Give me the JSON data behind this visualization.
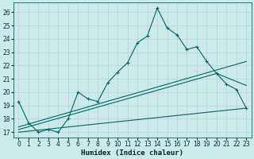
{
  "xlabel": "Humidex (Indice chaleur)",
  "bg_color": "#cdeaea",
  "grid_color": "#b8d8d8",
  "line_color": "#006666",
  "xlim": [
    -0.5,
    23.5
  ],
  "ylim": [
    16.6,
    26.7
  ],
  "xticks": [
    0,
    1,
    2,
    3,
    4,
    5,
    6,
    7,
    8,
    9,
    10,
    11,
    12,
    13,
    14,
    15,
    16,
    17,
    18,
    19,
    20,
    21,
    22,
    23
  ],
  "yticks": [
    17,
    18,
    19,
    20,
    21,
    22,
    23,
    24,
    25,
    26
  ],
  "line_main_x": [
    0,
    1,
    2,
    3,
    4,
    5,
    6,
    7,
    8,
    9,
    10,
    11,
    12,
    13,
    14,
    15,
    16,
    17,
    18,
    19,
    20,
    21,
    22,
    23
  ],
  "line_main_y": [
    19.3,
    17.7,
    17.0,
    17.2,
    17.0,
    18.0,
    20.0,
    19.5,
    19.3,
    20.7,
    21.5,
    22.2,
    23.7,
    24.2,
    26.3,
    24.8,
    24.3,
    23.2,
    23.4,
    22.3,
    21.4,
    20.6,
    20.2,
    18.8
  ],
  "line2_x": [
    0,
    23
  ],
  "line2_y": [
    17.4,
    22.3
  ],
  "line3_x": [
    0,
    20,
    23
  ],
  "line3_y": [
    17.2,
    21.4,
    20.5
  ],
  "line4_x": [
    0,
    23
  ],
  "line4_y": [
    17.0,
    18.8
  ]
}
